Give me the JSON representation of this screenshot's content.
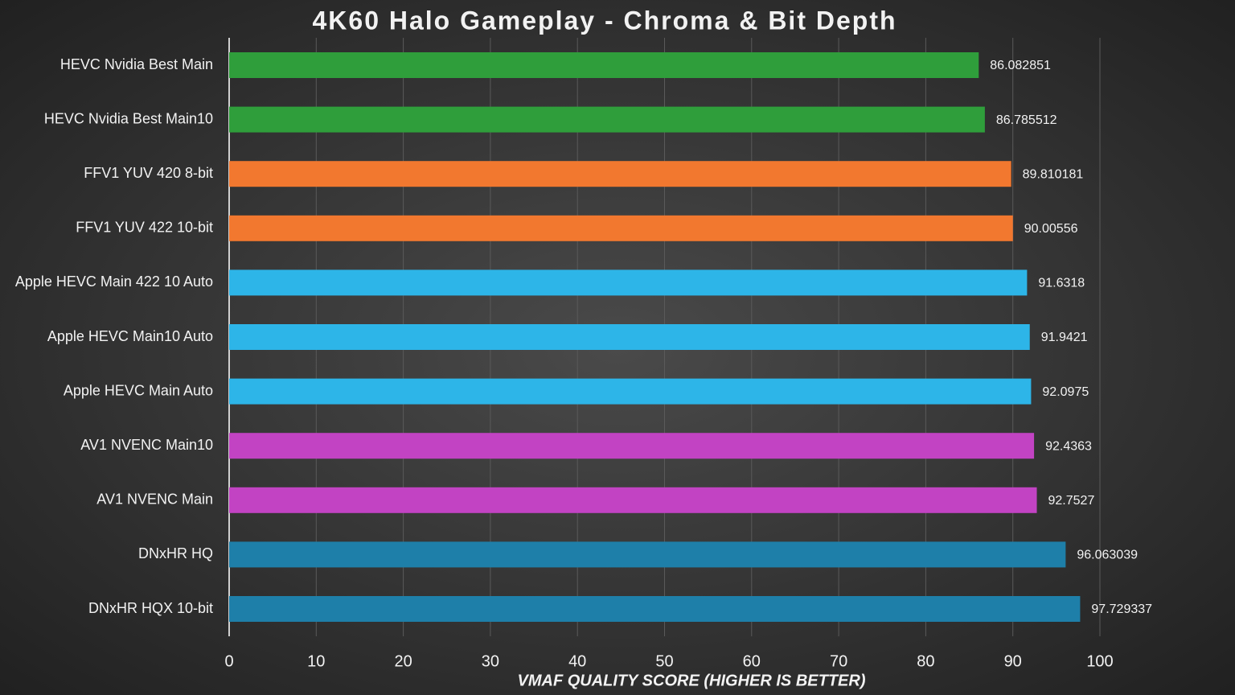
{
  "chart_data": {
    "type": "bar",
    "orientation": "horizontal",
    "title": "4K60 Halo Gameplay - Chroma & Bit Depth",
    "x_label": "VMAF QUALITY SCORE (HIGHER IS BETTER)",
    "categories": [
      "HEVC Nvidia Best Main",
      "HEVC Nvidia Best Main10",
      "FFV1 YUV 420 8-bit",
      "FFV1 YUV 422 10-bit",
      "Apple HEVC Main 422 10 Auto",
      "Apple HEVC Main10 Auto",
      "Apple HEVC Main Auto",
      "AV1 NVENC Main10",
      "AV1 NVENC Main",
      "DNxHR HQ",
      "DNxHR HQX 10-bit"
    ],
    "values": [
      86.082851,
      86.785512,
      89.810181,
      90.00556,
      91.6318,
      91.9421,
      92.0975,
      92.4363,
      92.7527,
      96.063039,
      97.729337
    ],
    "colors": [
      "#2f9e3b",
      "#2f9e3b",
      "#f2782f",
      "#f2782f",
      "#2db5e8",
      "#2db5e8",
      "#2db5e8",
      "#c243c3",
      "#c243c3",
      "#1e7fa9",
      "#1e7fa9"
    ],
    "xlim": [
      0,
      100
    ],
    "xticks": [
      0,
      10,
      20,
      30,
      40,
      50,
      60,
      70,
      80,
      90,
      100
    ],
    "grid": true
  }
}
